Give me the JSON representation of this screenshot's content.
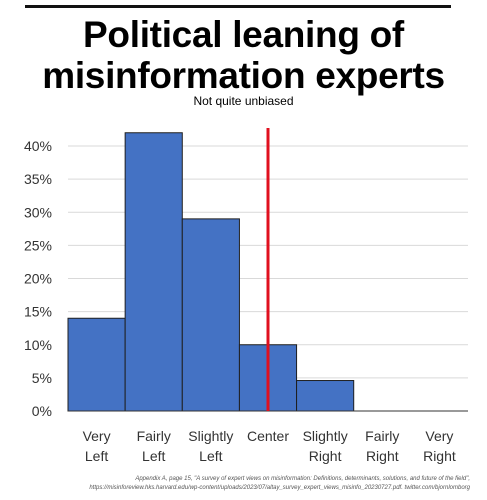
{
  "title_line1": "Political leaning of",
  "title_line2": "misinformation experts",
  "subtitle": "Not quite unbiased",
  "footnote_line1": "Appendix A, page 15, \"A survey of expert views on misinformation: Definitions, determinants, solutions, and future of the field\",",
  "footnote_line2": "https://misinforeview.hks.harvard.edu/wp-content/uploads/2023/07/altay_survey_expert_views_misinfo_20230727.pdf. twitter.com/bjornlomborg",
  "colors": {
    "bar": "#4472c4",
    "bar_edge": "#1f1f1f",
    "center_line": "#e0101f",
    "grid": "#d9d9d9"
  },
  "chart_data": {
    "type": "bar",
    "categories": [
      [
        "Very",
        "Left"
      ],
      [
        "Fairly",
        "Left"
      ],
      [
        "Slightly",
        "Left"
      ],
      [
        "Center",
        ""
      ],
      [
        "Slightly",
        "Right"
      ],
      [
        "Fairly",
        "Right"
      ],
      [
        "Very",
        "Right"
      ]
    ],
    "values": [
      14,
      42,
      29,
      10,
      4.6,
      0,
      0
    ],
    "ylim": [
      0,
      40
    ],
    "yticks": [
      "0%",
      "5%",
      "10%",
      "15%",
      "20%",
      "25%",
      "30%",
      "35%",
      "40%"
    ],
    "ytick_values": [
      0,
      5,
      10,
      15,
      20,
      25,
      30,
      35,
      40
    ],
    "grid": true,
    "reference_line": "Center"
  }
}
